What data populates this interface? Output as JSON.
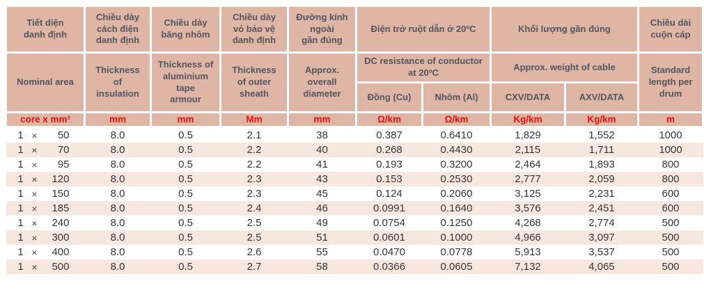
{
  "colors": {
    "header_bg": "#DFB5A5",
    "stripe_bg": "#F8E7DF",
    "unit_text_red": "#F40B0B",
    "header_text": "#55555E",
    "data_text": "#35353A"
  },
  "table": {
    "headers_vi": {
      "nominal_area": "Tiết diện\ndanh định",
      "insulation": "Chiều dày\ncách điện\ndanh định",
      "tape": "Chiều dày\nbăng nhôm",
      "sheath": "Chiều dày\nvỏ bảo vệ\ndanh định",
      "diameter": "Đường kính\nngoài\ngần đúng",
      "resistance": "Điện trở ruột dẫn ở 20ºC",
      "weight": "Khối lượng gần đúng",
      "drum": "Chiều dài\ncuộn cáp"
    },
    "headers_en": {
      "nominal_area": "Nominal area",
      "insulation": "Thickness\nof\ninsulation",
      "tape": "Thickness of\naluminium\ntape\narmour",
      "sheath": "Thickness\nof outer\nsheath",
      "diameter": "Approx.\noverall\ndiameter",
      "resistance": "DC resistance of conductor\nat 20ºC",
      "weight": "Approx. weight of cable",
      "drum": "Standard\nlength per\ndrum"
    },
    "subheaders": {
      "cu": "Đồng (Cu)",
      "al": "Nhôm (Al)",
      "cxv": "CXV/DATA",
      "axv": "AXV/DATA"
    },
    "units": [
      "core x mm²",
      "mm",
      "mm",
      "Mm",
      "mm",
      "Ω/km",
      "Ω/km",
      "Kg/km",
      "Kg/km",
      "m"
    ],
    "rows": [
      {
        "cores": "1",
        "times": "×",
        "size": "50",
        "values": [
          "8.0",
          "0.5",
          "2.1",
          "38",
          "0.387",
          "0.6410",
          "1,829",
          "1,552",
          "1000"
        ]
      },
      {
        "cores": "1",
        "times": "×",
        "size": "70",
        "values": [
          "8.0",
          "0.5",
          "2.2",
          "40",
          "0.268",
          "0.4430",
          "2,115",
          "1,711",
          "1000"
        ]
      },
      {
        "cores": "1",
        "times": "×",
        "size": "95",
        "values": [
          "8.0",
          "0.5",
          "2.2",
          "41",
          "0.193",
          "0.3200",
          "2,464",
          "1,893",
          "800"
        ]
      },
      {
        "cores": "1",
        "times": "×",
        "size": "120",
        "values": [
          "8.0",
          "0.5",
          "2.3",
          "43",
          "0.153",
          "0.2530",
          "2,777",
          "2,059",
          "800"
        ]
      },
      {
        "cores": "1",
        "times": "×",
        "size": "150",
        "values": [
          "8.0",
          "0.5",
          "2.3",
          "45",
          "0.124",
          "0.2060",
          "3,125",
          "2,231",
          "600"
        ]
      },
      {
        "cores": "1",
        "times": "×",
        "size": "185",
        "values": [
          "8.0",
          "0.5",
          "2.4",
          "46",
          "0.0991",
          "0.1640",
          "3,576",
          "2,451",
          "600"
        ]
      },
      {
        "cores": "1",
        "times": "×",
        "size": "240",
        "values": [
          "8.0",
          "0.5",
          "2.5",
          "49",
          "0.0754",
          "0.1250",
          "4,268",
          "2,774",
          "500"
        ]
      },
      {
        "cores": "1",
        "times": "×",
        "size": "300",
        "values": [
          "8.0",
          "0.5",
          "2.5",
          "51",
          "0.0601",
          "0.1000",
          "4,966",
          "3,097",
          "500"
        ]
      },
      {
        "cores": "1",
        "times": "×",
        "size": "400",
        "values": [
          "8.0",
          "0.5",
          "2.6",
          "55",
          "0.0470",
          "0.0778",
          "5,913",
          "3,537",
          "500"
        ]
      },
      {
        "cores": "1",
        "times": "×",
        "size": "500",
        "values": [
          "8.0",
          "0.5",
          "2.7",
          "58",
          "0.0366",
          "0.0605",
          "7,132",
          "4,065",
          "500"
        ]
      }
    ]
  }
}
